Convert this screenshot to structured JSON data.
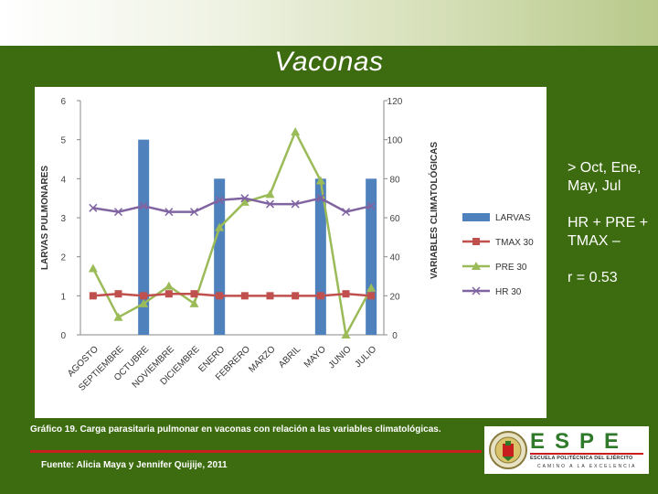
{
  "slide": {
    "title": "Vaconas",
    "notes": [
      "> Oct, Ene, May, Jul",
      "HR + PRE + TMAX –",
      "r = 0.53"
    ],
    "caption": "Gráfico 19. Carga parasitaria pulmonar en vaconas con relación a las variables climatológicas.",
    "source": "Fuente: Alicia Maya y Jennifer Quijije, 2011",
    "logo": {
      "wordmark": "ESPE",
      "subtitle": "ESCUELA POLITÉCNICA DEL EJÉRCITO",
      "motto": "CAMINO A LA EXCELENCIA"
    }
  },
  "colors": {
    "background": "#3d6b10",
    "larvas": "#4f81bd",
    "tmax": "#c0504d",
    "pre": "#9bbb59",
    "hr": "#8064a2"
  },
  "chart_data": {
    "type": "bar",
    "categories": [
      "AGOSTO",
      "SEPTIEMBRE",
      "OCTUBRE",
      "NOVIEMBRE",
      "DICIEMBRE",
      "ENERO",
      "FEBRERO",
      "MARZO",
      "ABRIL",
      "MAYO",
      "JUNIO",
      "JULIO"
    ],
    "ylabel": "LARVAS PULMONARES",
    "y2label": "VARIABLES CLIMATOLÓGICAS",
    "ylim": [
      0,
      6
    ],
    "y2lim": [
      0,
      120
    ],
    "yticks": [
      0,
      1,
      2,
      3,
      4,
      5,
      6
    ],
    "y2ticks": [
      0,
      20,
      40,
      60,
      80,
      100,
      120
    ],
    "legend_position": "right",
    "grid": false,
    "series": [
      {
        "name": "LARVAS",
        "type": "bar",
        "axis": "left",
        "values": [
          0,
          0,
          5,
          0,
          0,
          4,
          0,
          0,
          0,
          4,
          0,
          4
        ]
      },
      {
        "name": "TMAX 30",
        "type": "line",
        "marker": "square",
        "axis": "right",
        "values": [
          20,
          21,
          20,
          21,
          21,
          20,
          20,
          20,
          20,
          20,
          21,
          20
        ]
      },
      {
        "name": "PRE 30",
        "type": "line",
        "marker": "triangle",
        "axis": "right",
        "values": [
          34,
          9,
          16,
          25,
          16,
          55,
          68,
          72,
          104,
          79,
          0,
          24
        ]
      },
      {
        "name": "HR 30",
        "type": "line",
        "marker": "x",
        "axis": "right",
        "values": [
          65,
          63,
          66,
          63,
          63,
          69,
          70,
          67,
          67,
          70,
          63,
          66
        ]
      }
    ]
  }
}
